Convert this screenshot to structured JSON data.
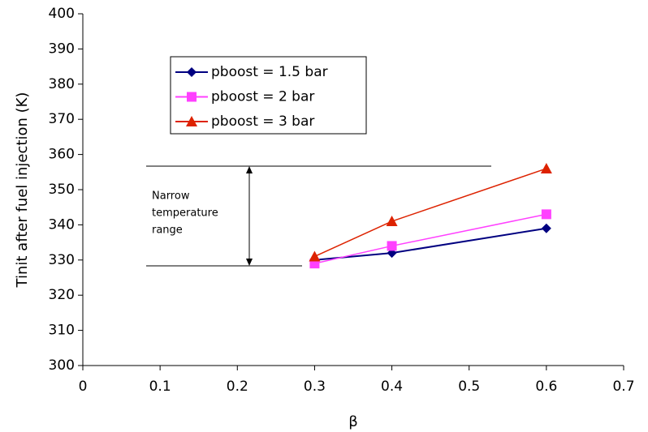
{
  "chart_data": {
    "type": "line",
    "x_label": "β",
    "y_label": "Tinit after fuel injection (K)",
    "x": [
      0.3,
      0.4,
      0.6
    ],
    "series": [
      {
        "name": "pboost = 1.5 bar",
        "color": "#000080",
        "marker": "diamond",
        "values": [
          330,
          332,
          339
        ]
      },
      {
        "name": "pboost = 2 bar",
        "color": "#ff40ff",
        "marker": "square",
        "values": [
          329,
          334,
          343
        ]
      },
      {
        "name": "pboost = 3 bar",
        "color": "#dd2200",
        "marker": "triangle",
        "values": [
          331,
          341,
          356
        ]
      }
    ],
    "annotation": [
      "Narrow",
      "temperature",
      "range"
    ],
    "xlim": [
      0,
      0.7
    ],
    "xticks": [
      0,
      0.1,
      0.2,
      0.3,
      0.4,
      0.5,
      0.6,
      0.7
    ],
    "ylim": [
      300,
      400
    ],
    "yticks": [
      300,
      310,
      320,
      330,
      340,
      350,
      360,
      370,
      380,
      390,
      400
    ],
    "grid": false
  }
}
